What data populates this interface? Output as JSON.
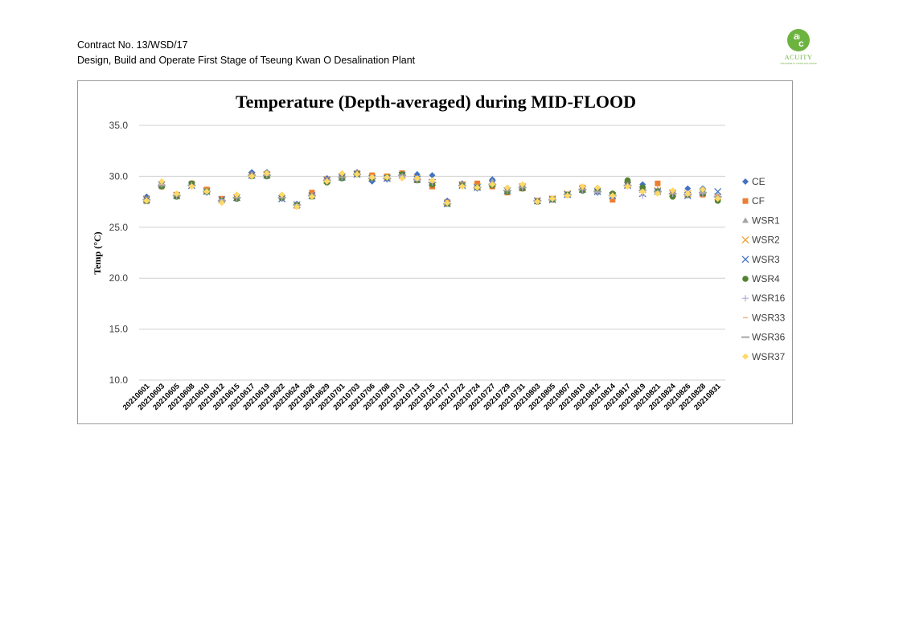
{
  "header": {
    "line1": "Contract No. 13/WSD/17",
    "line2": "Design, Build and Operate First Stage of Tseung Kwan O Desalination Plant"
  },
  "logo": {
    "text": "ACUITY",
    "small": "SUSTAINABILITY CONSULTING LIMITED",
    "color": "#6db33f"
  },
  "chart_data": {
    "type": "scatter",
    "title": "Temperature (Depth-averaged) during MID-FLOOD",
    "ylabel": "Temp (°C)",
    "xlabel": "",
    "ylim": [
      10,
      35
    ],
    "yticks": [
      "10.0",
      "15.0",
      "20.0",
      "25.0",
      "30.0",
      "35.0"
    ],
    "grid": true,
    "legend_position": "right",
    "x": [
      "20210601",
      "20210603",
      "20210605",
      "20210608",
      "20210610",
      "20210612",
      "20210615",
      "20210617",
      "20210619",
      "20210622",
      "20210624",
      "20210626",
      "20210629",
      "20210701",
      "20210703",
      "20210706",
      "20210708",
      "20210710",
      "20210713",
      "20210715",
      "20210717",
      "20210722",
      "20210724",
      "20210727",
      "20210729",
      "20210731",
      "20210803",
      "20210805",
      "20210807",
      "20210810",
      "20210812",
      "20210814",
      "20210817",
      "20210819",
      "20210821",
      "20210824",
      "20210826",
      "20210828",
      "20210831"
    ],
    "series": [
      {
        "name": "CE",
        "marker": "diamond",
        "color": "#4472c4",
        "values": [
          28.0,
          29.4,
          28.0,
          29.2,
          28.4,
          27.6,
          27.8,
          30.4,
          30.4,
          27.8,
          27.3,
          28.2,
          29.8,
          30.1,
          30.4,
          29.5,
          29.7,
          30.0,
          30.2,
          30.1,
          27.6,
          29.3,
          28.8,
          29.7,
          28.6,
          29.0,
          27.6,
          27.8,
          28.2,
          28.6,
          28.4,
          28.3,
          29.1,
          29.2,
          28.6,
          28.1,
          28.8,
          28.8,
          28.0
        ]
      },
      {
        "name": "CF",
        "marker": "square",
        "color": "#ed7d31",
        "values": [
          27.6,
          29.0,
          28.2,
          29.3,
          28.7,
          27.8,
          28.0,
          30.1,
          30.2,
          28.0,
          27.1,
          28.4,
          29.6,
          29.9,
          30.3,
          30.1,
          30.0,
          30.3,
          29.6,
          29.0,
          27.4,
          29.2,
          29.3,
          29.0,
          28.4,
          28.8,
          27.6,
          27.8,
          28.2,
          28.9,
          28.6,
          27.7,
          29.3,
          28.7,
          29.3,
          28.3,
          28.2,
          28.2,
          27.8
        ]
      },
      {
        "name": "WSR1",
        "marker": "triangle",
        "color": "#a5a5a5",
        "values": [
          27.5,
          29.1,
          28.0,
          29.2,
          28.5,
          27.6,
          27.8,
          30.2,
          30.2,
          27.9,
          27.2,
          28.0,
          29.6,
          30.0,
          30.3,
          29.8,
          29.9,
          30.1,
          29.7,
          29.5,
          27.3,
          29.2,
          28.9,
          29.5,
          28.5,
          28.9,
          27.5,
          27.7,
          28.2,
          28.8,
          28.6,
          28.0,
          29.3,
          28.9,
          28.7,
          28.2,
          28.1,
          28.6,
          28.1
        ]
      },
      {
        "name": "WSR2",
        "marker": "x",
        "color": "#f0a030",
        "values": [
          27.8,
          29.2,
          28.1,
          29.1,
          28.6,
          27.7,
          27.9,
          30.1,
          30.2,
          27.8,
          27.2,
          28.1,
          29.7,
          30.0,
          30.2,
          29.9,
          29.9,
          30.1,
          29.8,
          29.4,
          27.4,
          29.2,
          29.0,
          29.3,
          28.6,
          29.0,
          27.6,
          27.8,
          28.3,
          28.8,
          28.5,
          28.1,
          29.2,
          28.7,
          28.6,
          28.4,
          28.3,
          28.5,
          28.0
        ]
      },
      {
        "name": "WSR3",
        "marker": "x",
        "color": "#4472c4",
        "values": [
          27.7,
          29.2,
          28.1,
          29.1,
          28.5,
          27.7,
          27.9,
          30.1,
          30.1,
          27.8,
          27.2,
          28.1,
          29.6,
          29.9,
          30.2,
          29.8,
          29.8,
          30.1,
          29.7,
          29.4,
          27.3,
          29.1,
          28.9,
          29.3,
          28.6,
          28.9,
          27.6,
          27.7,
          28.2,
          28.7,
          28.5,
          28.1,
          29.1,
          28.3,
          28.5,
          28.3,
          28.1,
          28.4,
          28.5
        ]
      },
      {
        "name": "WSR4",
        "marker": "circle",
        "color": "#548235",
        "values": [
          27.6,
          29.0,
          28.0,
          29.3,
          28.5,
          27.6,
          27.8,
          30.0,
          30.0,
          27.9,
          27.2,
          28.0,
          29.4,
          29.8,
          30.2,
          29.8,
          29.9,
          30.2,
          29.6,
          29.2,
          27.3,
          29.1,
          28.9,
          29.1,
          28.5,
          28.8,
          27.5,
          27.7,
          28.2,
          28.6,
          28.6,
          28.3,
          29.6,
          28.9,
          28.5,
          28.0,
          28.2,
          28.3,
          27.6
        ]
      },
      {
        "name": "WSR16",
        "marker": "plus",
        "color": "#b4a7d6",
        "values": [
          27.7,
          29.2,
          28.1,
          29.1,
          28.5,
          27.7,
          27.9,
          30.1,
          30.1,
          27.9,
          27.2,
          28.1,
          29.6,
          29.9,
          30.2,
          29.8,
          29.8,
          30.0,
          29.6,
          29.4,
          27.3,
          29.1,
          28.9,
          29.2,
          28.6,
          28.9,
          27.6,
          27.7,
          28.2,
          28.7,
          28.4,
          28.1,
          29.1,
          28.1,
          28.4,
          28.3,
          28.1,
          28.3,
          28.0
        ]
      },
      {
        "name": "WSR33",
        "marker": "dash",
        "color": "#f4b183",
        "values": [
          27.7,
          29.2,
          28.1,
          29.1,
          28.5,
          27.6,
          27.9,
          30.1,
          30.1,
          27.9,
          27.2,
          28.1,
          29.6,
          29.9,
          30.2,
          29.8,
          29.8,
          30.1,
          29.7,
          29.4,
          27.3,
          29.1,
          28.9,
          29.2,
          28.6,
          28.9,
          27.6,
          27.7,
          28.2,
          28.7,
          28.5,
          28.1,
          29.1,
          28.6,
          28.5,
          28.3,
          28.2,
          28.4,
          28.0
        ]
      },
      {
        "name": "WSR36",
        "marker": "longdash",
        "color": "#a5a5a5",
        "values": [
          27.7,
          29.1,
          28.1,
          29.1,
          28.5,
          27.6,
          27.9,
          30.1,
          30.1,
          27.9,
          27.2,
          28.1,
          29.6,
          29.9,
          30.2,
          29.8,
          29.8,
          30.1,
          29.7,
          29.4,
          27.3,
          29.1,
          28.9,
          29.2,
          28.6,
          28.9,
          27.6,
          27.7,
          28.2,
          28.7,
          28.5,
          28.1,
          29.1,
          28.6,
          28.5,
          28.3,
          28.2,
          28.4,
          28.0
        ]
      },
      {
        "name": "WSR37",
        "marker": "diamond",
        "color": "#ffd966",
        "values": [
          27.6,
          29.5,
          28.3,
          29.0,
          28.5,
          27.4,
          28.2,
          30.0,
          30.3,
          28.2,
          27.0,
          28.0,
          29.5,
          30.3,
          30.2,
          29.9,
          29.9,
          29.8,
          29.8,
          29.6,
          27.4,
          29.0,
          28.9,
          29.2,
          28.9,
          29.2,
          27.5,
          27.8,
          28.1,
          29.0,
          28.9,
          28.1,
          29.0,
          28.5,
          28.3,
          28.6,
          28.3,
          28.7,
          27.8
        ]
      }
    ]
  }
}
